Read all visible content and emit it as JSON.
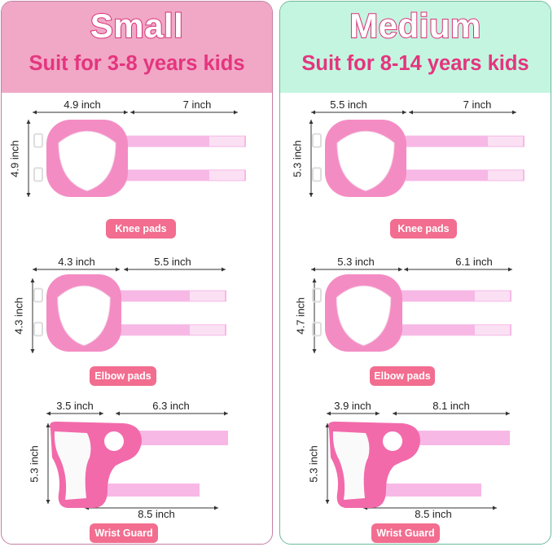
{
  "colors": {
    "small_header": "#f0a8c6",
    "medium_header": "#c4f5e0",
    "accent_pink": "#e4357e",
    "tag": "#f26d8f",
    "pad_pink": "#f48cc4",
    "strap": "#f7b8e6"
  },
  "panels": [
    {
      "title": "Small",
      "subtitle": "Suit for 3-8 years kids",
      "knee": {
        "width": "4.9 inch",
        "strap": "7 inch",
        "height": "4.9 inch",
        "label": "Knee pads"
      },
      "elbow": {
        "width": "4.3 inch",
        "strap": "5.5 inch",
        "height": "4.3 inch",
        "label": "Elbow pads"
      },
      "wrist": {
        "width": "3.5 inch",
        "strap": "6.3 inch",
        "height": "5.3 inch",
        "strap2": "8.5 inch",
        "label": "Wrist Guard"
      }
    },
    {
      "title": "Medium",
      "subtitle": "Suit for 8-14 years kids",
      "knee": {
        "width": "5.5 inch",
        "strap": "7 inch",
        "height": "5.3 inch",
        "label": "Knee pads"
      },
      "elbow": {
        "width": "5.3 inch",
        "strap": "6.1 inch",
        "height": "4.7 inch",
        "label": "Elbow pads"
      },
      "wrist": {
        "width": "3.9 inch",
        "strap": "8.1 inch",
        "height": "5.3 inch",
        "strap2": "8.5 inch",
        "label": "Wrist Guard"
      }
    }
  ]
}
